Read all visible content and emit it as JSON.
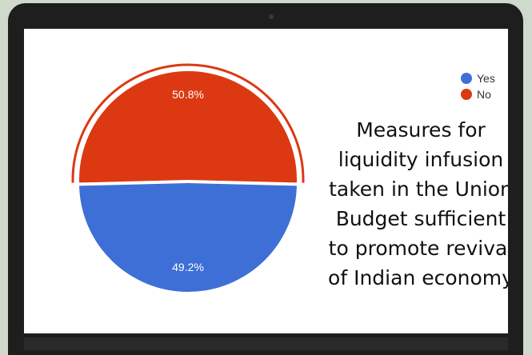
{
  "chart_data": {
    "type": "pie",
    "slices": [
      {
        "label": "Yes",
        "value": 49.2,
        "display": "49.2%",
        "color": "#3d6fd6"
      },
      {
        "label": "No",
        "value": 50.8,
        "display": "50.8%",
        "color": "#dc3912"
      }
    ],
    "legend_position": "top-right",
    "exploded_slice": "No"
  },
  "legend": [
    {
      "label": "Yes",
      "color": "#3d6fd6"
    },
    {
      "label": "No",
      "color": "#dc3912"
    }
  ],
  "caption": [
    "Measures for",
    "liquidity infusion",
    "taken in the Union",
    "Budget sufficient",
    "to promote revival",
    "of Indian economy"
  ]
}
